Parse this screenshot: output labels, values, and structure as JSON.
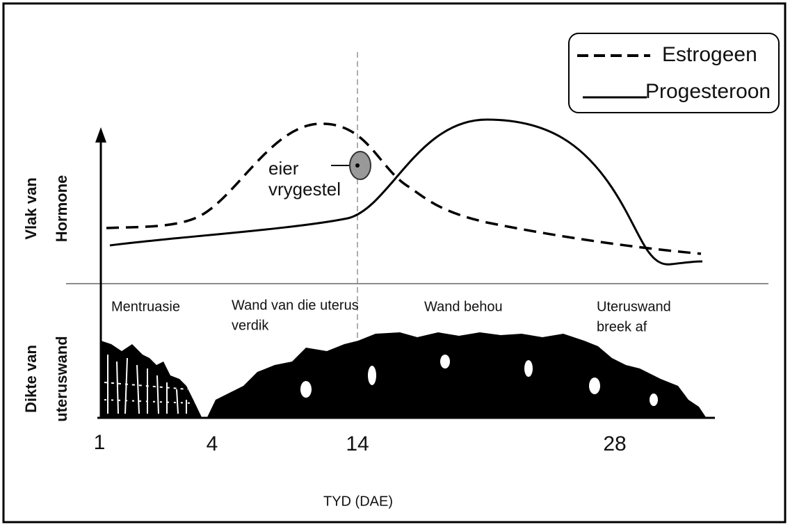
{
  "legend": {
    "items": [
      "Estrogeen",
      "Progesteroon"
    ]
  },
  "annotation": {
    "lines": [
      "eier",
      "vrygestel"
    ]
  },
  "y_labels": {
    "hormones": [
      "Vlak van",
      "Hormone"
    ],
    "thickness": [
      "Dikte van",
      "uteruswand"
    ]
  },
  "phases": [
    {
      "lines": [
        "Mentruasie"
      ]
    },
    {
      "lines": [
        "Wand van die uterus",
        "verdik"
      ]
    },
    {
      "lines": [
        "Wand behou"
      ]
    },
    {
      "lines": [
        "Uteruswand",
        "breek af"
      ]
    }
  ],
  "x_ticks": [
    "1",
    "4",
    "14",
    "28"
  ],
  "x_label": "TYD (DAE)"
}
